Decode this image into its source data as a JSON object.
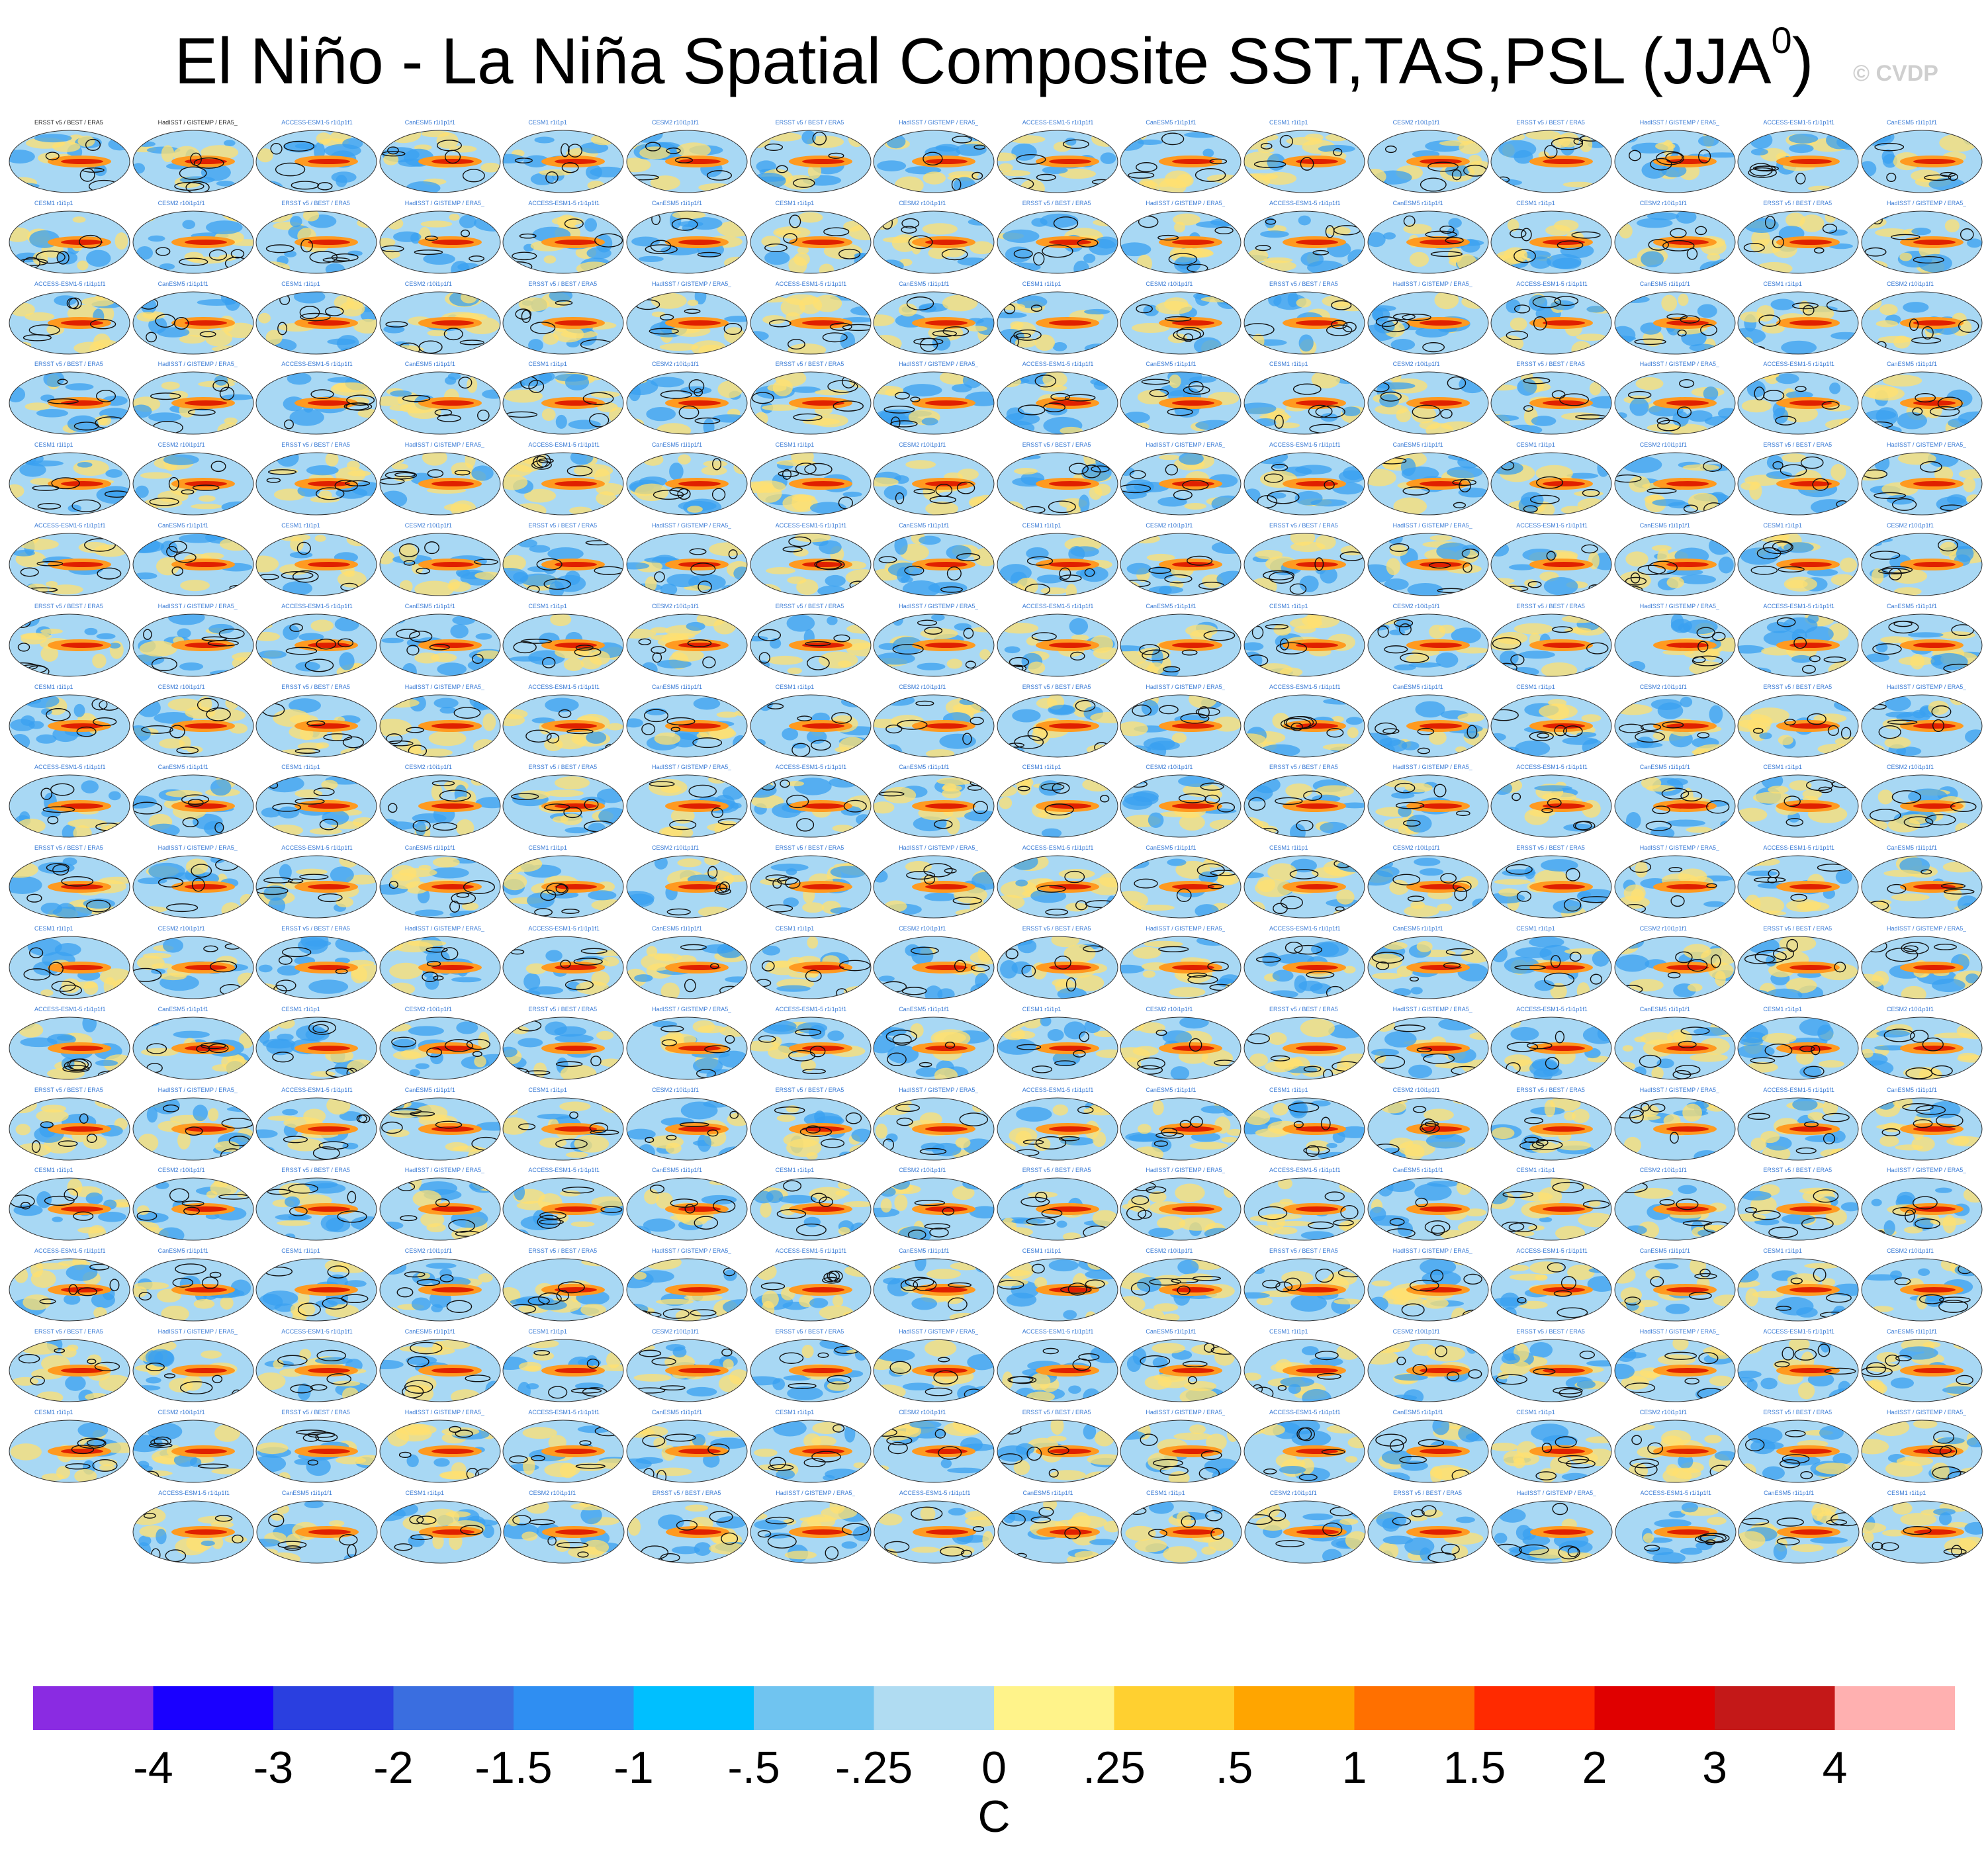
{
  "title": {
    "main": "El Niño - La Niña Spatial Composite SST,TAS,PSL (JJA",
    "superscript": "0",
    "closing": ")",
    "watermark": "© CVDP"
  },
  "chart_data": {
    "type": "heatmap",
    "title": "El Niño - La Niña Spatial Composite SST,TAS,PSL (JJA0)",
    "panel_grid": {
      "rows": 18,
      "cols_per_row": [
        16,
        16,
        16,
        16,
        16,
        16,
        16,
        16,
        16,
        16,
        16,
        16,
        16,
        16,
        16,
        16,
        16,
        15
      ]
    },
    "panel_labels_sample": [
      "ERSST v5 / BEST / ERA5",
      "HadISST / GISTEMP / ERA5_1",
      "ACCESS-ESM1-5 r1i1p1f1",
      "CanESM5 r1i1p1f1",
      "CESM1 r1i1p1",
      "CESM2 r10i1p1f1"
    ],
    "colorbar": {
      "unit": "C",
      "tick_labels": [
        "-4",
        "-3",
        "-2",
        "-1.5",
        "-1",
        "-.5",
        "-.25",
        "0",
        ".25",
        ".5",
        "1",
        "1.5",
        "2",
        "3",
        "4"
      ],
      "colors": [
        "#8a2be2",
        "#1a00ff",
        "#2a3fe0",
        "#3a6ee0",
        "#2f8ef2",
        "#00bfff",
        "#70c4f0",
        "#b0dcf2",
        "#fff38a",
        "#ffd030",
        "#ffa500",
        "#ff7000",
        "#ff2a00",
        "#e00000",
        "#c41818",
        "#ffb0b0"
      ]
    },
    "map_colors": {
      "ocean_warm": "#ff9a20",
      "ocean_hot": "#e02000",
      "ocean_cool": "#3aa0f0",
      "ocean_light": "#a8d8f4",
      "land_warm": "#ffe070",
      "contour": "#111111"
    }
  }
}
